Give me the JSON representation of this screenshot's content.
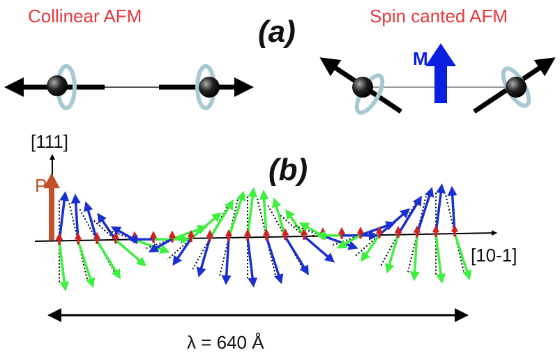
{
  "panel_a": {
    "left_title": "Collinear AFM",
    "label": "(a)",
    "right_title": "Spin canted AFM",
    "moment_label": "M"
  },
  "panel_b": {
    "vertical_axis": "[111]",
    "label": "(b)",
    "polarization_label": "P",
    "horizontal_axis": "[10-1]",
    "wavelength_label": "λ = 640 Å"
  }
}
